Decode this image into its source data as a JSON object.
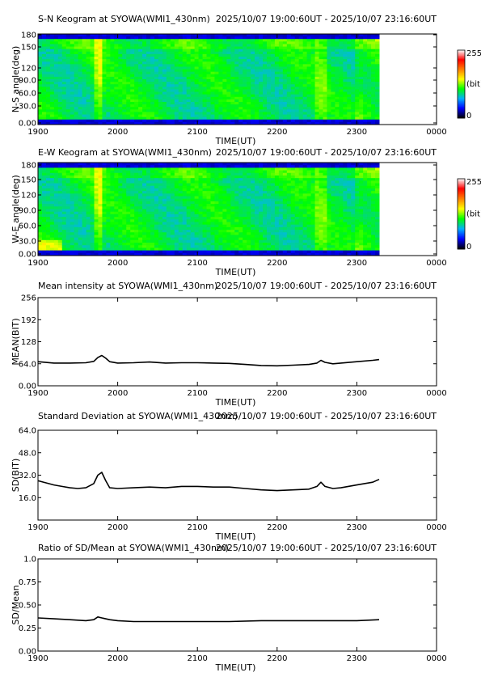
{
  "chart_data": [
    {
      "type": "heatmap",
      "title": "S-N Keogram at SYOWA(WMI1_430nm)",
      "time_range": "2025/10/07 19:00:60UT - 2025/10/07 23:16:60UT",
      "xlabel": "TIME(UT)",
      "ylabel": "N-S angle(deg)",
      "x_ticks": [
        "1900",
        "2000",
        "2100",
        "2200",
        "2300",
        "0000"
      ],
      "y_ticks": [
        "0.00",
        "30.0",
        "60.0",
        "90.0",
        "120",
        "150",
        "180"
      ],
      "xlim": [
        19.0,
        24.0
      ],
      "ylim": [
        0,
        180
      ],
      "data_end": 23.28,
      "colorbar": {
        "min_label": "0",
        "max_label": "255",
        "unit_label": "(bit)"
      },
      "colormap": [
        "#000000",
        "#0000ff",
        "#00b0ff",
        "#00ff00",
        "#ffff00",
        "#ff8000",
        "#ff0000",
        "#ffffff"
      ]
    },
    {
      "type": "heatmap",
      "title": "E-W Keogram at SYOWA(WMI1_430nm)",
      "time_range": "2025/10/07 19:00:60UT - 2025/10/07 23:16:60UT",
      "xlabel": "TIME(UT)",
      "ylabel": "W-E angle(deg)",
      "x_ticks": [
        "1900",
        "2000",
        "2100",
        "2200",
        "2300",
        "0000"
      ],
      "y_ticks": [
        "0.00",
        "30.0",
        "60.0",
        "90.0",
        "120",
        "150",
        "180"
      ],
      "xlim": [
        19.0,
        24.0
      ],
      "ylim": [
        0,
        180
      ],
      "data_end": 23.28,
      "colorbar": {
        "min_label": "0",
        "max_label": "255",
        "unit_label": "(bit)"
      },
      "colormap": [
        "#000000",
        "#0000ff",
        "#00b0ff",
        "#00ff00",
        "#ffff00",
        "#ff8000",
        "#ff0000",
        "#ffffff"
      ]
    },
    {
      "type": "line",
      "title": "Mean intensity at SYOWA(WMI1_430nm)",
      "time_range": "2025/10/07 19:00:60UT - 2025/10/07 23:16:60UT",
      "xlabel": "TIME(UT)",
      "ylabel": "MEAN(BIT)",
      "x_ticks": [
        "1900",
        "2000",
        "2100",
        "2200",
        "2300",
        "0000"
      ],
      "y_ticks": [
        "0.00",
        "64.0",
        "128",
        "192",
        "256"
      ],
      "xlim": [
        19.0,
        24.0
      ],
      "ylim": [
        0,
        256
      ],
      "x": [
        19.0,
        19.2,
        19.4,
        19.6,
        19.7,
        19.75,
        19.8,
        19.85,
        19.9,
        20.0,
        20.2,
        20.4,
        20.6,
        20.8,
        21.0,
        21.2,
        21.4,
        21.6,
        21.8,
        22.0,
        22.2,
        22.4,
        22.5,
        22.55,
        22.6,
        22.7,
        22.8,
        23.0,
        23.2,
        23.28
      ],
      "values": [
        70,
        66,
        66,
        67,
        71,
        82,
        88,
        80,
        70,
        66,
        67,
        69,
        66,
        67,
        67,
        66,
        65,
        62,
        59,
        58,
        60,
        62,
        66,
        74,
        68,
        64,
        66,
        70,
        74,
        76
      ]
    },
    {
      "type": "line",
      "title": "Standard Deviation at SYOWA(WMI1_430nm)",
      "time_range": "2025/10/07 19:00:60UT - 2025/10/07 23:16:60UT",
      "xlabel": "TIME(UT)",
      "ylabel": "SD(BIT)",
      "x_ticks": [
        "1900",
        "2000",
        "2100",
        "2200",
        "2300",
        "0000"
      ],
      "y_ticks": [
        "16.0",
        "32.0",
        "48.0",
        "64.0"
      ],
      "xlim": [
        19.0,
        24.0
      ],
      "ylim": [
        0,
        64
      ],
      "x": [
        19.0,
        19.1,
        19.2,
        19.3,
        19.4,
        19.5,
        19.6,
        19.7,
        19.75,
        19.8,
        19.85,
        19.9,
        20.0,
        20.2,
        20.4,
        20.6,
        20.8,
        21.0,
        21.2,
        21.4,
        21.6,
        21.8,
        22.0,
        22.2,
        22.4,
        22.5,
        22.55,
        22.6,
        22.7,
        22.8,
        23.0,
        23.2,
        23.28
      ],
      "values": [
        28,
        26.5,
        25,
        24,
        23,
        22.5,
        23,
        26,
        32,
        34,
        28,
        23,
        22.5,
        23,
        23.5,
        23,
        24,
        24,
        23.5,
        23.5,
        22.5,
        21.5,
        21,
        21.5,
        22,
        24,
        27,
        24,
        22.5,
        23,
        25,
        27,
        29
      ]
    },
    {
      "type": "line",
      "title": "Ratio of SD/Mean at SYOWA(WMI1_430nm)",
      "time_range": "2025/10/07 19:00:60UT - 2025/10/07 23:16:60UT",
      "xlabel": "TIME(UT)",
      "ylabel": "SD/Mean",
      "x_ticks": [
        "1900",
        "2000",
        "2100",
        "2200",
        "2300",
        "0000"
      ],
      "y_ticks": [
        "0.00",
        "0.25",
        "0.50",
        "0.75",
        "1.0"
      ],
      "xlim": [
        19.0,
        24.0
      ],
      "ylim": [
        0,
        1.0
      ],
      "x": [
        19.0,
        19.2,
        19.4,
        19.6,
        19.7,
        19.75,
        19.8,
        19.9,
        20.0,
        20.2,
        20.6,
        21.0,
        21.4,
        21.8,
        22.2,
        22.6,
        23.0,
        23.28
      ],
      "values": [
        0.36,
        0.35,
        0.34,
        0.33,
        0.34,
        0.37,
        0.36,
        0.34,
        0.33,
        0.32,
        0.32,
        0.32,
        0.32,
        0.33,
        0.33,
        0.33,
        0.33,
        0.34
      ]
    }
  ]
}
